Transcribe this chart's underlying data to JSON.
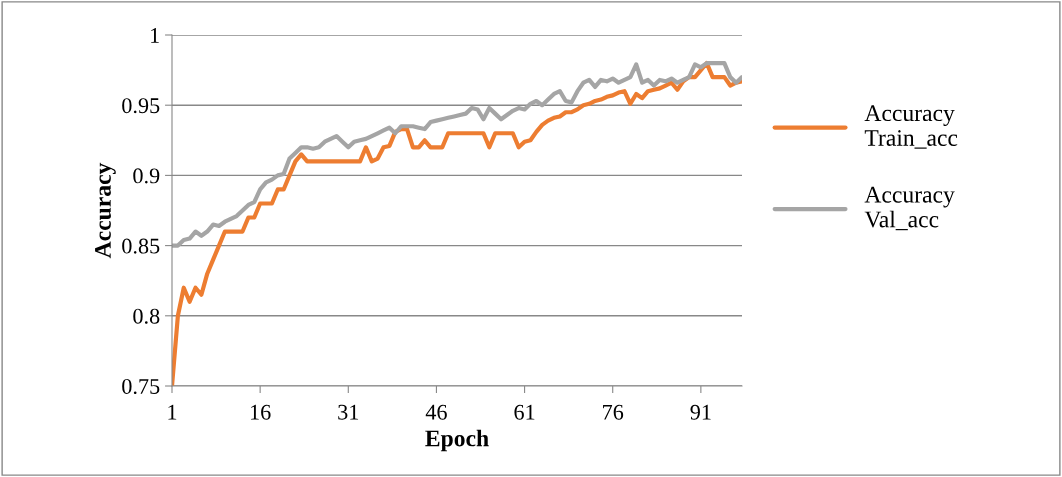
{
  "chart_data": {
    "type": "line",
    "xlabel": "Epoch",
    "ylabel": "Accuracy",
    "x": [
      1,
      2,
      3,
      4,
      5,
      6,
      7,
      8,
      9,
      10,
      11,
      12,
      13,
      14,
      15,
      16,
      17,
      18,
      19,
      20,
      21,
      22,
      23,
      24,
      25,
      26,
      27,
      28,
      29,
      30,
      31,
      32,
      33,
      34,
      35,
      36,
      37,
      38,
      39,
      40,
      41,
      42,
      43,
      44,
      45,
      46,
      47,
      48,
      49,
      50,
      51,
      52,
      53,
      54,
      55,
      56,
      57,
      58,
      59,
      60,
      61,
      62,
      63,
      64,
      65,
      66,
      67,
      68,
      69,
      70,
      71,
      72,
      73,
      74,
      75,
      76,
      77,
      78,
      79,
      80,
      81,
      82,
      83,
      84,
      85,
      86,
      87,
      88,
      89,
      90,
      91,
      92,
      93,
      94,
      95,
      96,
      97,
      98
    ],
    "xlim": [
      1,
      98
    ],
    "xticks": [
      1,
      16,
      31,
      46,
      61,
      76,
      91
    ],
    "ylim": [
      0.75,
      1
    ],
    "yticks": [
      0.75,
      0.8,
      0.85,
      0.9,
      0.95,
      1
    ],
    "grid": "y",
    "legend": "right",
    "line_style": "solid",
    "marker": "none",
    "series": [
      {
        "name": "Accuracy\nTrain_acc",
        "color": "#ed7d31",
        "values": [
          0.75,
          0.8,
          0.82,
          0.81,
          0.82,
          0.815,
          0.83,
          0.84,
          0.85,
          0.86,
          0.86,
          0.86,
          0.86,
          0.87,
          0.87,
          0.88,
          0.88,
          0.88,
          0.89,
          0.89,
          0.9,
          0.91,
          0.915,
          0.91,
          0.91,
          0.91,
          0.91,
          0.91,
          0.91,
          0.91,
          0.91,
          0.91,
          0.91,
          0.92,
          0.91,
          0.912,
          0.92,
          0.921,
          0.931,
          0.933,
          0.933,
          0.92,
          0.92,
          0.925,
          0.92,
          0.92,
          0.92,
          0.93,
          0.93,
          0.93,
          0.93,
          0.93,
          0.93,
          0.93,
          0.92,
          0.93,
          0.93,
          0.93,
          0.93,
          0.92,
          0.924,
          0.925,
          0.931,
          0.936,
          0.939,
          0.941,
          0.942,
          0.945,
          0.945,
          0.947,
          0.95,
          0.951,
          0.953,
          0.954,
          0.956,
          0.957,
          0.959,
          0.96,
          0.951,
          0.958,
          0.955,
          0.96,
          0.961,
          0.962,
          0.964,
          0.966,
          0.961,
          0.967,
          0.97,
          0.97,
          0.975,
          0.98,
          0.97,
          0.97,
          0.97,
          0.964,
          0.966,
          0.967
        ]
      },
      {
        "name": "Accuracy\nVal_acc",
        "color": "#a5a5a5",
        "values": [
          0.85,
          0.85,
          0.854,
          0.855,
          0.86,
          0.857,
          0.86,
          0.865,
          0.864,
          0.867,
          0.869,
          0.871,
          0.875,
          0.879,
          0.881,
          0.89,
          0.895,
          0.897,
          0.9,
          0.901,
          0.912,
          0.916,
          0.92,
          0.92,
          0.919,
          0.92,
          0.924,
          0.926,
          0.928,
          0.924,
          0.92,
          0.924,
          0.925,
          0.926,
          0.928,
          0.93,
          0.932,
          0.934,
          0.93,
          0.935,
          0.935,
          0.935,
          0.934,
          0.933,
          0.938,
          0.939,
          0.94,
          0.941,
          0.942,
          0.943,
          0.944,
          0.948,
          0.947,
          0.94,
          0.948,
          0.944,
          0.94,
          0.943,
          0.946,
          0.948,
          0.947,
          0.951,
          0.953,
          0.95,
          0.954,
          0.958,
          0.96,
          0.953,
          0.952,
          0.96,
          0.966,
          0.968,
          0.963,
          0.968,
          0.967,
          0.969,
          0.966,
          0.968,
          0.97,
          0.979,
          0.966,
          0.968,
          0.964,
          0.968,
          0.967,
          0.969,
          0.966,
          0.968,
          0.97,
          0.979,
          0.977,
          0.98,
          0.98,
          0.98,
          0.98,
          0.97,
          0.966,
          0.97
        ]
      }
    ]
  }
}
